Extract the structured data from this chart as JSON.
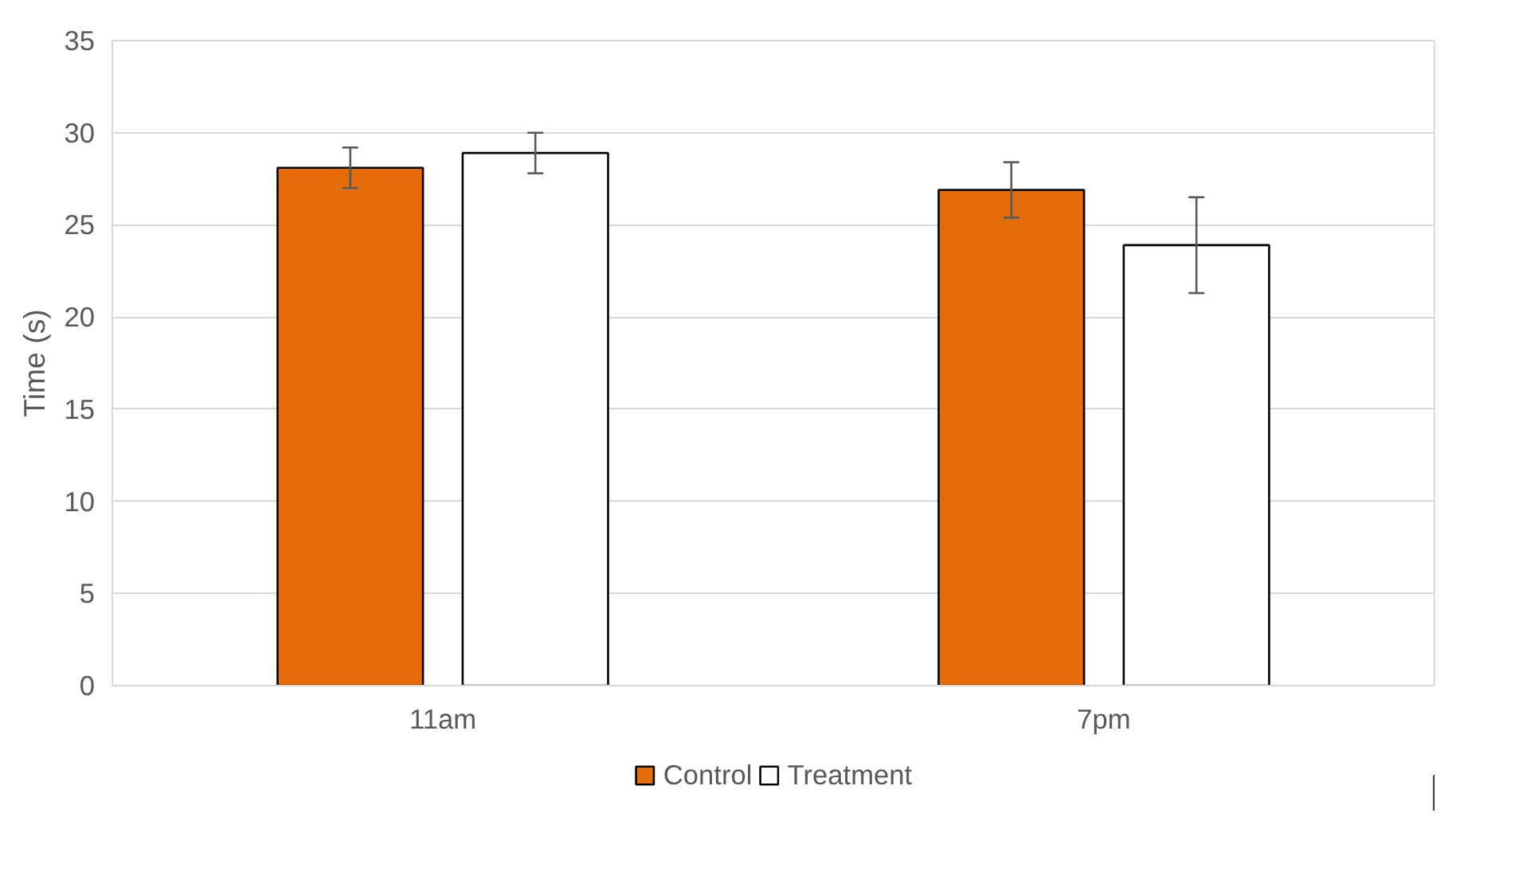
{
  "chart_data": {
    "type": "bar",
    "ylabel": "Time (s)",
    "categories": [
      "11am",
      "7pm"
    ],
    "series": [
      {
        "name": "Control",
        "color": "#e46c0a",
        "values": [
          28.1,
          26.9
        ],
        "errors": [
          1.1,
          1.5
        ]
      },
      {
        "name": "Treatment",
        "color": "#ffffff",
        "values": [
          28.9,
          23.9
        ],
        "errors": [
          1.1,
          2.6
        ]
      }
    ],
    "ylim": [
      0,
      35
    ],
    "yticks": [
      0,
      5,
      10,
      15,
      20,
      25,
      30,
      35
    ],
    "grid": "y",
    "legend": "bottom"
  }
}
